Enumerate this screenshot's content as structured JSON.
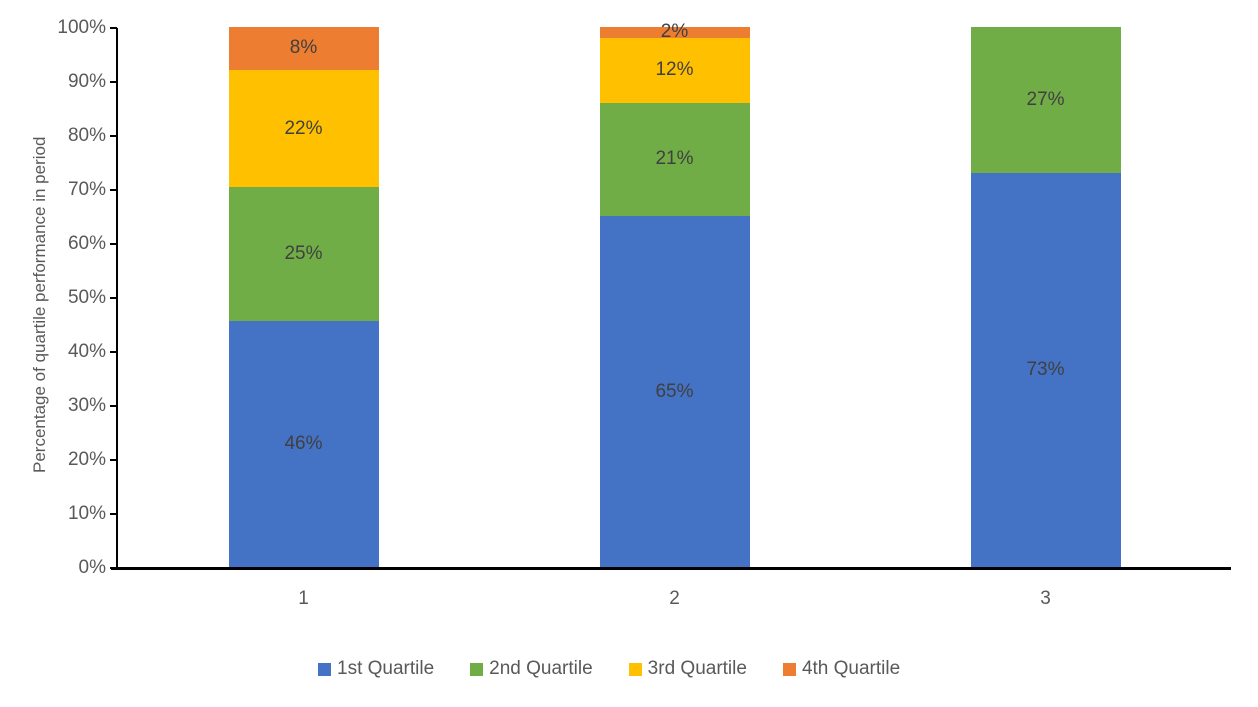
{
  "colors": {
    "background": "#FFFFFF",
    "axis_line": "#000000",
    "tick_label_text": "#595959",
    "data_label_text": "#404040",
    "series_1st": "#4472C4",
    "series_2nd": "#70AD47",
    "series_3rd": "#FFC000",
    "series_4th": "#ED7D31"
  },
  "chart_data": {
    "type": "bar",
    "subtype": "stacked-100-percent",
    "title": "",
    "xlabel": "",
    "ylabel": "Percentage of quartile performance in period",
    "ylim": [
      0,
      100
    ],
    "grid": false,
    "legend_position": "bottom",
    "categories": [
      "1",
      "2",
      "3"
    ],
    "y_ticks": [
      "0%",
      "10%",
      "20%",
      "30%",
      "40%",
      "50%",
      "60%",
      "70%",
      "80%",
      "90%",
      "100%"
    ],
    "series": [
      {
        "name": "1st Quartile",
        "color": "#4472C4",
        "values": [
          46,
          65,
          73
        ],
        "labels": [
          "46%",
          "65%",
          "73%"
        ]
      },
      {
        "name": "2nd Quartile",
        "color": "#70AD47",
        "values": [
          25,
          21,
          27
        ],
        "labels": [
          "25%",
          "21%",
          "27%"
        ]
      },
      {
        "name": "3rd Quartile",
        "color": "#FFC000",
        "values": [
          22,
          12,
          0
        ],
        "labels": [
          "22%",
          "12%",
          ""
        ]
      },
      {
        "name": "4th Quartile",
        "color": "#ED7D31",
        "values": [
          8,
          2,
          0
        ],
        "labels": [
          "8%",
          "2%",
          ""
        ]
      }
    ]
  }
}
